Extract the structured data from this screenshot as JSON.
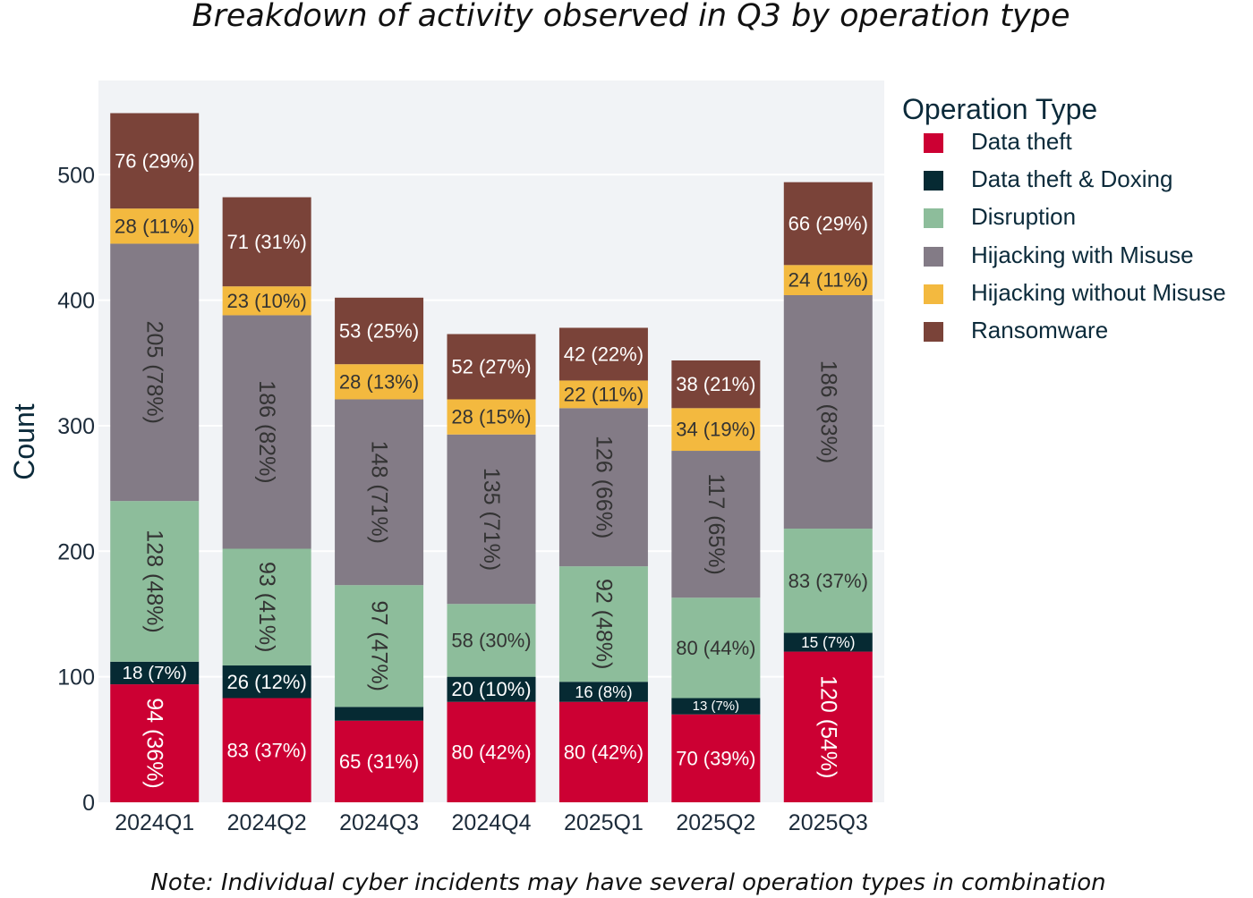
{
  "title": "Breakdown of activity observed in Q3 by operation type",
  "note": "Note: Individual cyber incidents may have several operation types in combination",
  "legend": {
    "title": "Operation Type"
  },
  "chart_data": {
    "type": "bar",
    "stacked": true,
    "title": "Breakdown of activity observed in Q3 by operation type",
    "xlabel": "",
    "ylabel": "Count",
    "ylim": [
      0,
      575
    ],
    "yticks": [
      0,
      100,
      200,
      300,
      400,
      500
    ],
    "grid": true,
    "legend_position": "right",
    "categories": [
      "2024Q1",
      "2024Q2",
      "2024Q3",
      "2024Q4",
      "2025Q1",
      "2025Q2",
      "2025Q3"
    ],
    "series": [
      {
        "name": "Data theft",
        "color": "#cc0033",
        "values": [
          94,
          83,
          65,
          80,
          80,
          70,
          120
        ],
        "labels": [
          "94 (36%)",
          "83 (37%)",
          "65 (31%)",
          "80 (42%)",
          "80 (42%)",
          "70 (39%)",
          "120 (54%)"
        ]
      },
      {
        "name": "Data theft & Doxing",
        "color": "#062a33",
        "values": [
          18,
          26,
          11,
          20,
          16,
          13,
          15
        ],
        "labels": [
          "18 (7%)",
          "26 (12%)",
          "",
          "20 (10%)",
          "16 (8%)",
          "13 (7%)",
          "15 (7%)"
        ]
      },
      {
        "name": "Disruption",
        "color": "#8dbd9b",
        "values": [
          128,
          93,
          97,
          58,
          92,
          80,
          83
        ],
        "labels": [
          "128 (48%)",
          "93 (41%)",
          "97 (47%)",
          "58 (30%)",
          "92 (48%)",
          "80 (44%)",
          "83 (37%)"
        ]
      },
      {
        "name": "Hijacking with Misuse",
        "color": "#837b86",
        "values": [
          205,
          186,
          148,
          135,
          126,
          117,
          186
        ],
        "labels": [
          "205 (78%)",
          "186 (82%)",
          "148 (71%)",
          "135 (71%)",
          "126 (66%)",
          "117 (65%)",
          "186 (83%)"
        ]
      },
      {
        "name": "Hijacking without Misuse",
        "color": "#f3b93f",
        "values": [
          28,
          23,
          28,
          28,
          22,
          34,
          24
        ],
        "labels": [
          "28 (11%)",
          "23 (10%)",
          "28 (13%)",
          "28 (15%)",
          "22 (11%)",
          "34 (19%)",
          "24 (11%)"
        ]
      },
      {
        "name": "Ransomware",
        "color": "#7a4339",
        "values": [
          76,
          71,
          53,
          52,
          42,
          38,
          66
        ],
        "labels": [
          "76 (29%)",
          "71 (31%)",
          "53 (25%)",
          "52 (27%)",
          "42 (22%)",
          "38 (21%)",
          "66 (29%)"
        ]
      }
    ]
  }
}
